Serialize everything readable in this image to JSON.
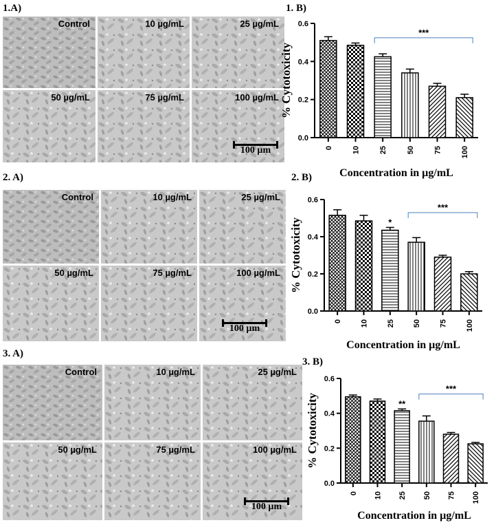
{
  "figure_labels": {
    "p1a": "1.A)",
    "p1b": "1. B)",
    "p2a": "2. A)",
    "p2b": "2. B)",
    "p3a": "3. A)",
    "p3b": "3. B)"
  },
  "micrograph_labels": [
    "Control",
    "10 µg/mL",
    "25 µg/mL",
    "50 µg/mL",
    "75 µg/mL",
    "100 µg/mL"
  ],
  "scale_bar": "100 µm",
  "chart_data": [
    {
      "type": "bar",
      "title": "",
      "xlabel": "Concentration in µg/mL",
      "ylabel": "% Cytotoxicity",
      "categories": [
        "0",
        "10",
        "25",
        "50",
        "75",
        "100"
      ],
      "values": [
        0.51,
        0.485,
        0.425,
        0.34,
        0.27,
        0.21
      ],
      "errors": [
        0.02,
        0.012,
        0.015,
        0.02,
        0.015,
        0.018
      ],
      "ylim": [
        0,
        0.6
      ],
      "yticks": [
        "0.0",
        "0.2",
        "0.4",
        "0.6"
      ],
      "significance": [
        {
          "label": "***",
          "from": "25",
          "to": "100"
        }
      ],
      "bar_marks": []
    },
    {
      "type": "bar",
      "title": "",
      "xlabel": "Concentration in µg/mL",
      "ylabel": "% Cytotoxicity",
      "categories": [
        "0",
        "10",
        "25",
        "50",
        "75",
        "100"
      ],
      "values": [
        0.515,
        0.485,
        0.435,
        0.37,
        0.29,
        0.2
      ],
      "errors": [
        0.03,
        0.03,
        0.015,
        0.025,
        0.01,
        0.012
      ],
      "ylim": [
        0,
        0.6
      ],
      "yticks": [
        "0.0",
        "0.2",
        "0.4",
        "0.6"
      ],
      "significance": [
        {
          "label": "***",
          "from": "50",
          "to": "100"
        }
      ],
      "bar_marks": [
        {
          "category": "25",
          "label": "*"
        }
      ]
    },
    {
      "type": "bar",
      "title": "",
      "xlabel": "Concentration in µg/mL",
      "ylabel": "% Cytotoxicity",
      "categories": [
        "0",
        "10",
        "25",
        "50",
        "75",
        "100"
      ],
      "values": [
        0.495,
        0.47,
        0.415,
        0.355,
        0.28,
        0.225
      ],
      "errors": [
        0.01,
        0.012,
        0.01,
        0.03,
        0.01,
        0.008
      ],
      "ylim": [
        0,
        0.6
      ],
      "yticks": [
        "0.0",
        "0.2",
        "0.4",
        "0.6"
      ],
      "significance": [
        {
          "label": "***",
          "from": "50",
          "to": "100"
        }
      ],
      "bar_marks": [
        {
          "category": "25",
          "label": "**"
        }
      ]
    }
  ]
}
